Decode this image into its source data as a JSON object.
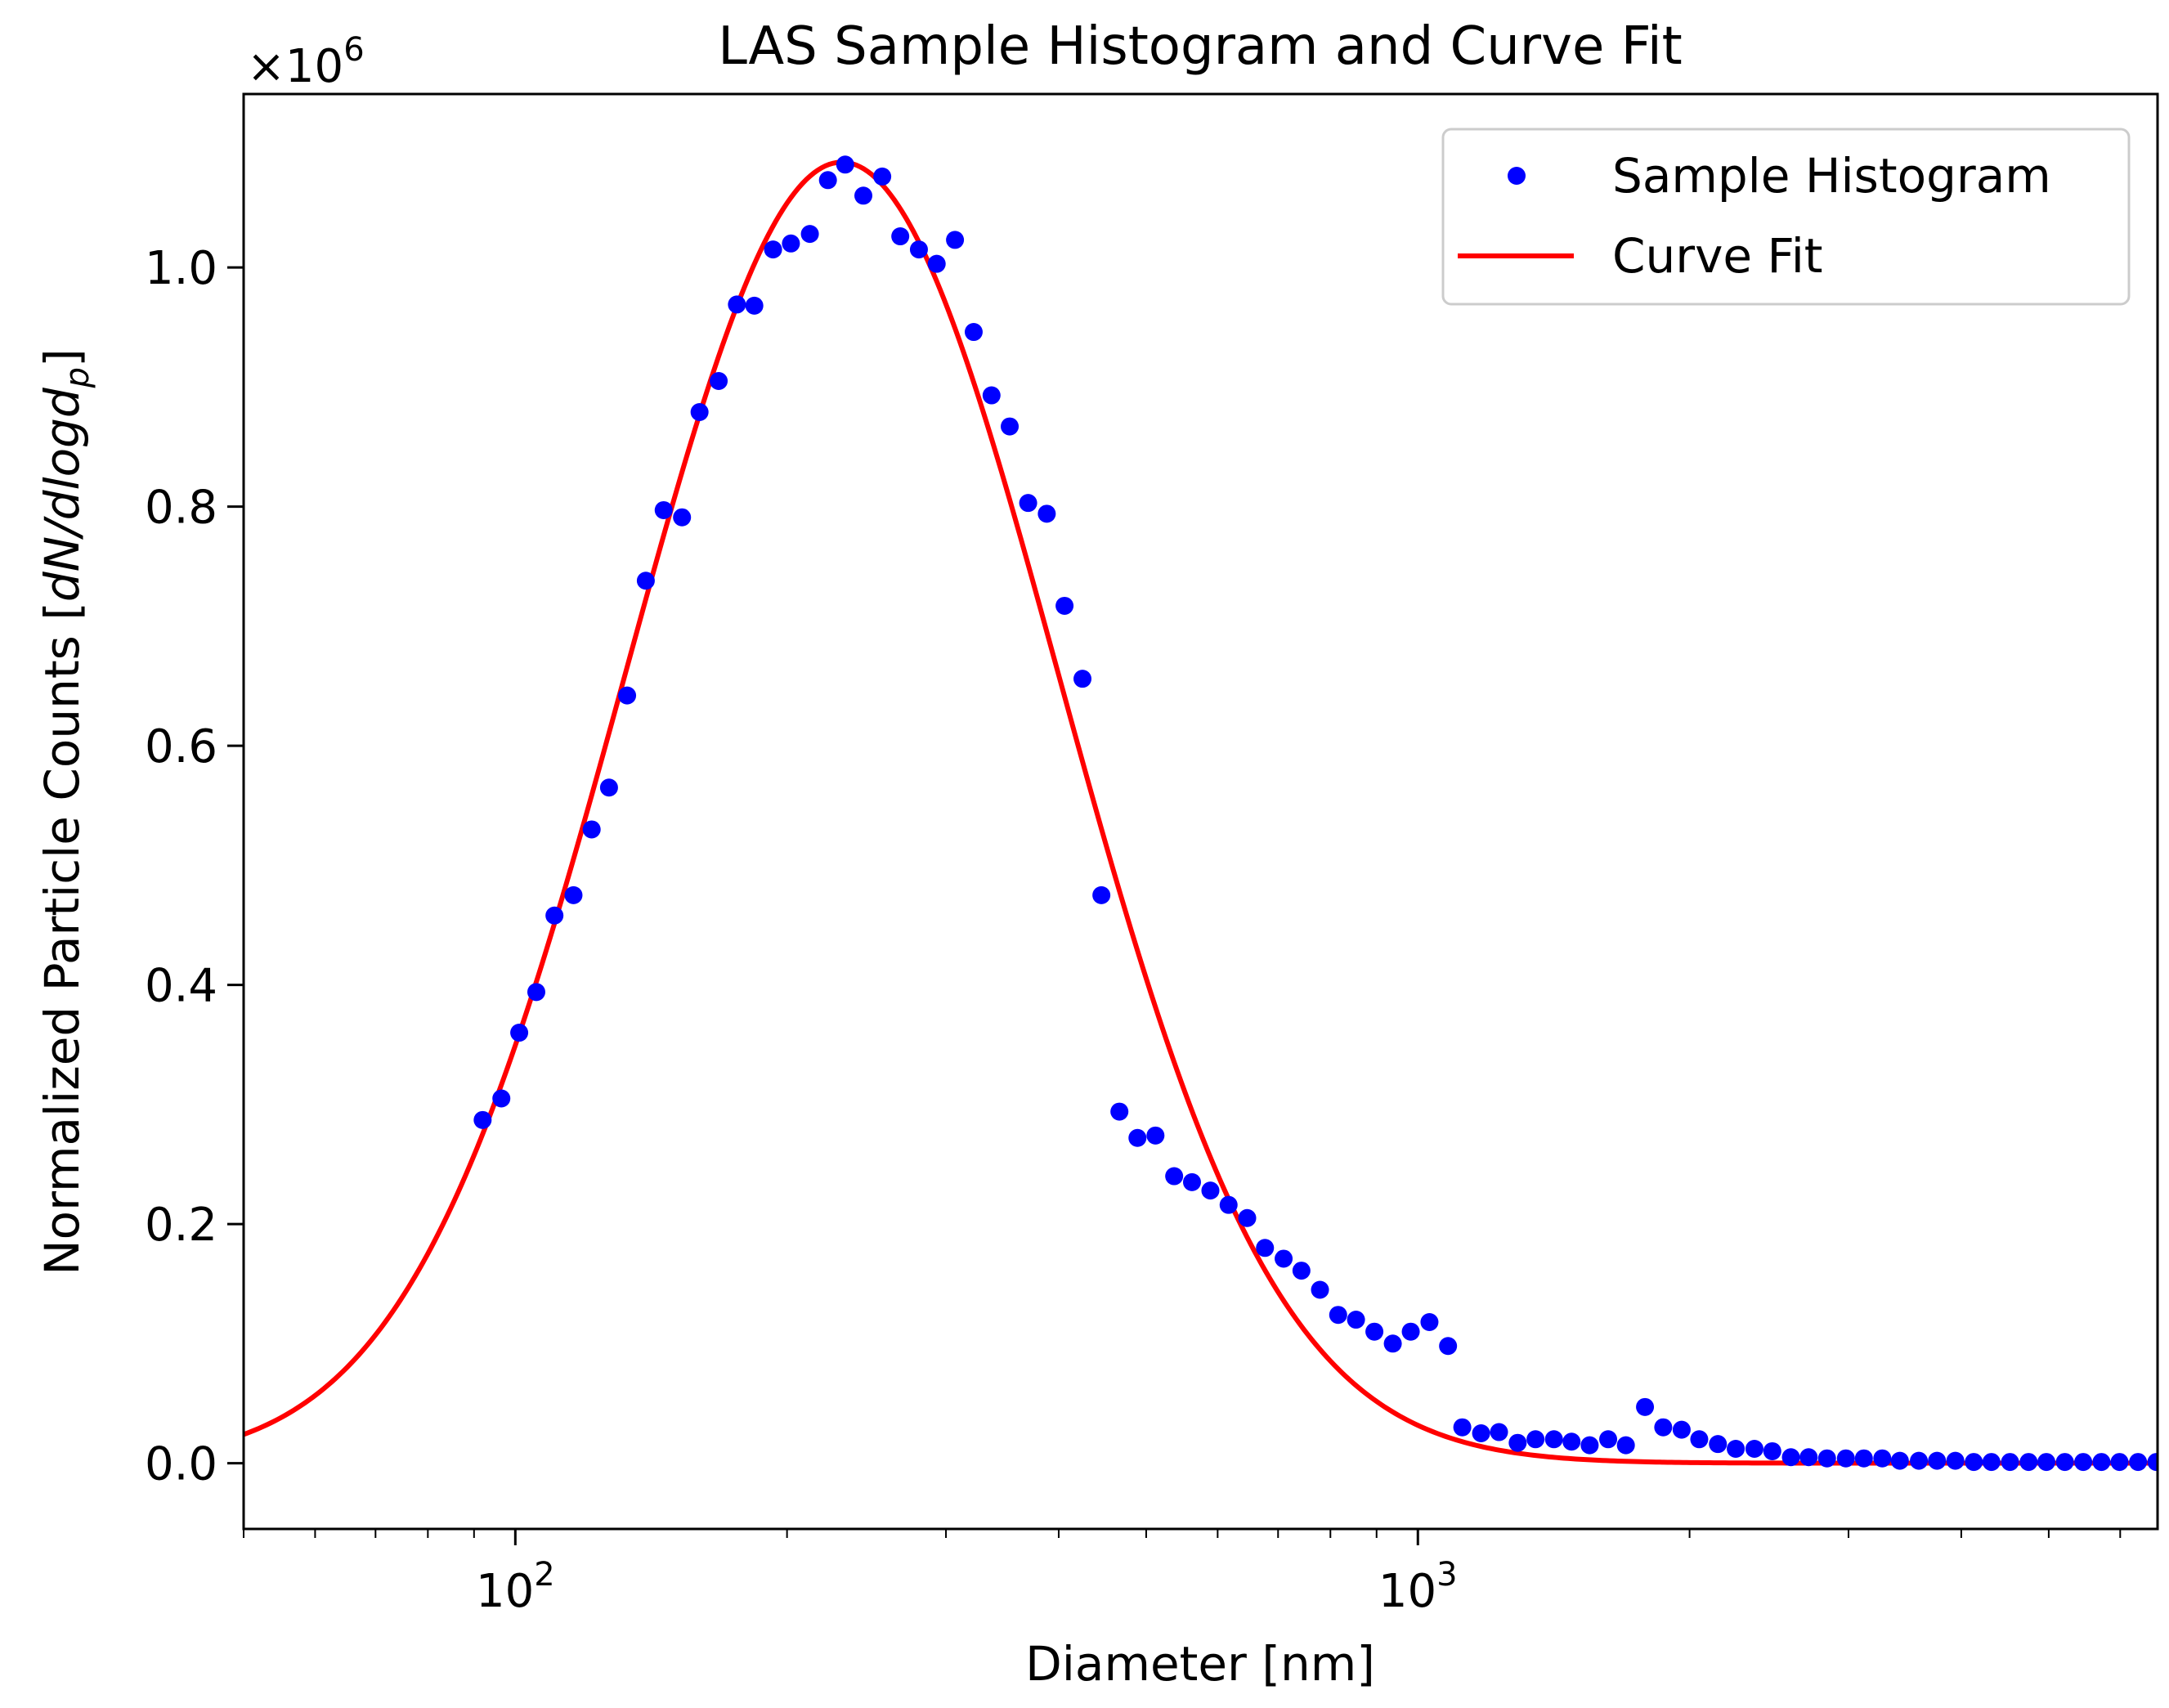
{
  "chart_data": {
    "type": "scatter",
    "title": "LAS Sample Histogram and Curve Fit",
    "xlabel": "Diameter [nm]",
    "ylabel_main": "Normalized Particle Counts [",
    "ylabel_math": "dN/dlogd",
    "ylabel_sub": "p",
    "ylabel_end": "]",
    "x_scale": "log",
    "xlim": [
      50,
      6600
    ],
    "ylim": [
      -0.055,
      1.145
    ],
    "y_multiplier_base": "×10",
    "y_multiplier_exp": "6",
    "x_major_ticks": [
      {
        "value": 100,
        "base": "10",
        "exp": "2"
      },
      {
        "value": 1000,
        "base": "10",
        "exp": "3"
      }
    ],
    "y_ticks": [
      {
        "value": 0.0,
        "label": "0.0"
      },
      {
        "value": 0.2,
        "label": "0.2"
      },
      {
        "value": 0.4,
        "label": "0.4"
      },
      {
        "value": 0.6,
        "label": "0.6"
      },
      {
        "value": 0.8,
        "label": "0.8"
      },
      {
        "value": 1.0,
        "label": "1.0"
      }
    ],
    "legend": {
      "position": "upper-right",
      "entries": [
        "Sample Histogram",
        "Curve Fit"
      ]
    },
    "series": [
      {
        "name": "Sample Histogram",
        "kind": "scatter",
        "color": "#0000ff",
        "points": [
          [
            92,
            0.287
          ],
          [
            96.5,
            0.305
          ],
          [
            101,
            0.36
          ],
          [
            105.5,
            0.394
          ],
          [
            110.5,
            0.458
          ],
          [
            116,
            0.475
          ],
          [
            121.5,
            0.53
          ],
          [
            127,
            0.565
          ],
          [
            133,
            0.642
          ],
          [
            139.5,
            0.738
          ],
          [
            146,
            0.797
          ],
          [
            153,
            0.791
          ],
          [
            160,
            0.879
          ],
          [
            168,
            0.905
          ],
          [
            176,
            0.969
          ],
          [
            184,
            0.968
          ],
          [
            193,
            1.015
          ],
          [
            202,
            1.02
          ],
          [
            212,
            1.028
          ],
          [
            222,
            1.073
          ],
          [
            232,
            1.086
          ],
          [
            243,
            1.06
          ],
          [
            255,
            1.076
          ],
          [
            267,
            1.026
          ],
          [
            280,
            1.015
          ],
          [
            293,
            1.003
          ],
          [
            307,
            1.023
          ],
          [
            322,
            0.946
          ],
          [
            337,
            0.893
          ],
          [
            353,
            0.867
          ],
          [
            370,
            0.803
          ],
          [
            388,
            0.794
          ],
          [
            406,
            0.717
          ],
          [
            425,
            0.656
          ],
          [
            446,
            0.475
          ],
          [
            467,
            0.294
          ],
          [
            489,
            0.272
          ],
          [
            512,
            0.274
          ],
          [
            537,
            0.24
          ],
          [
            562,
            0.235
          ],
          [
            589,
            0.228
          ],
          [
            617,
            0.216
          ],
          [
            647,
            0.205
          ],
          [
            677,
            0.18
          ],
          [
            710,
            0.171
          ],
          [
            743,
            0.161
          ],
          [
            779,
            0.145
          ],
          [
            816,
            0.124
          ],
          [
            854,
            0.12
          ],
          [
            895,
            0.11
          ],
          [
            938,
            0.1
          ],
          [
            982,
            0.11
          ],
          [
            1030,
            0.118
          ],
          [
            1080,
            0.098
          ],
          [
            1120,
            0.03
          ],
          [
            1175,
            0.025
          ],
          [
            1230,
            0.026
          ],
          [
            1290,
            0.017
          ],
          [
            1350,
            0.02
          ],
          [
            1415,
            0.02
          ],
          [
            1480,
            0.018
          ],
          [
            1550,
            0.015
          ],
          [
            1625,
            0.02
          ],
          [
            1700,
            0.015
          ],
          [
            1785,
            0.047
          ],
          [
            1870,
            0.03
          ],
          [
            1960,
            0.028
          ],
          [
            2050,
            0.02
          ],
          [
            2150,
            0.016
          ],
          [
            2250,
            0.012
          ],
          [
            2360,
            0.012
          ],
          [
            2470,
            0.01
          ],
          [
            2590,
            0.005
          ],
          [
            2710,
            0.005
          ],
          [
            2840,
            0.004
          ],
          [
            2980,
            0.004
          ],
          [
            3120,
            0.004
          ],
          [
            3270,
            0.004
          ],
          [
            3420,
            0.002
          ],
          [
            3590,
            0.002
          ],
          [
            3760,
            0.002
          ],
          [
            3940,
            0.002
          ],
          [
            4130,
            0.001
          ],
          [
            4320,
            0.001
          ],
          [
            4530,
            0.001
          ],
          [
            4750,
            0.001
          ],
          [
            4970,
            0.001
          ],
          [
            5210,
            0.001
          ],
          [
            5460,
            0.001
          ],
          [
            5720,
            0.001
          ],
          [
            5990,
            0.001
          ],
          [
            6280,
            0.001
          ],
          [
            6580,
            0.001
          ]
        ]
      },
      {
        "name": "Curve Fit",
        "kind": "line",
        "color": "#ff0000",
        "model": "lognormal",
        "amplitude": 1.088,
        "mode_nm": 230,
        "log10_sigma": 0.24
      }
    ]
  }
}
